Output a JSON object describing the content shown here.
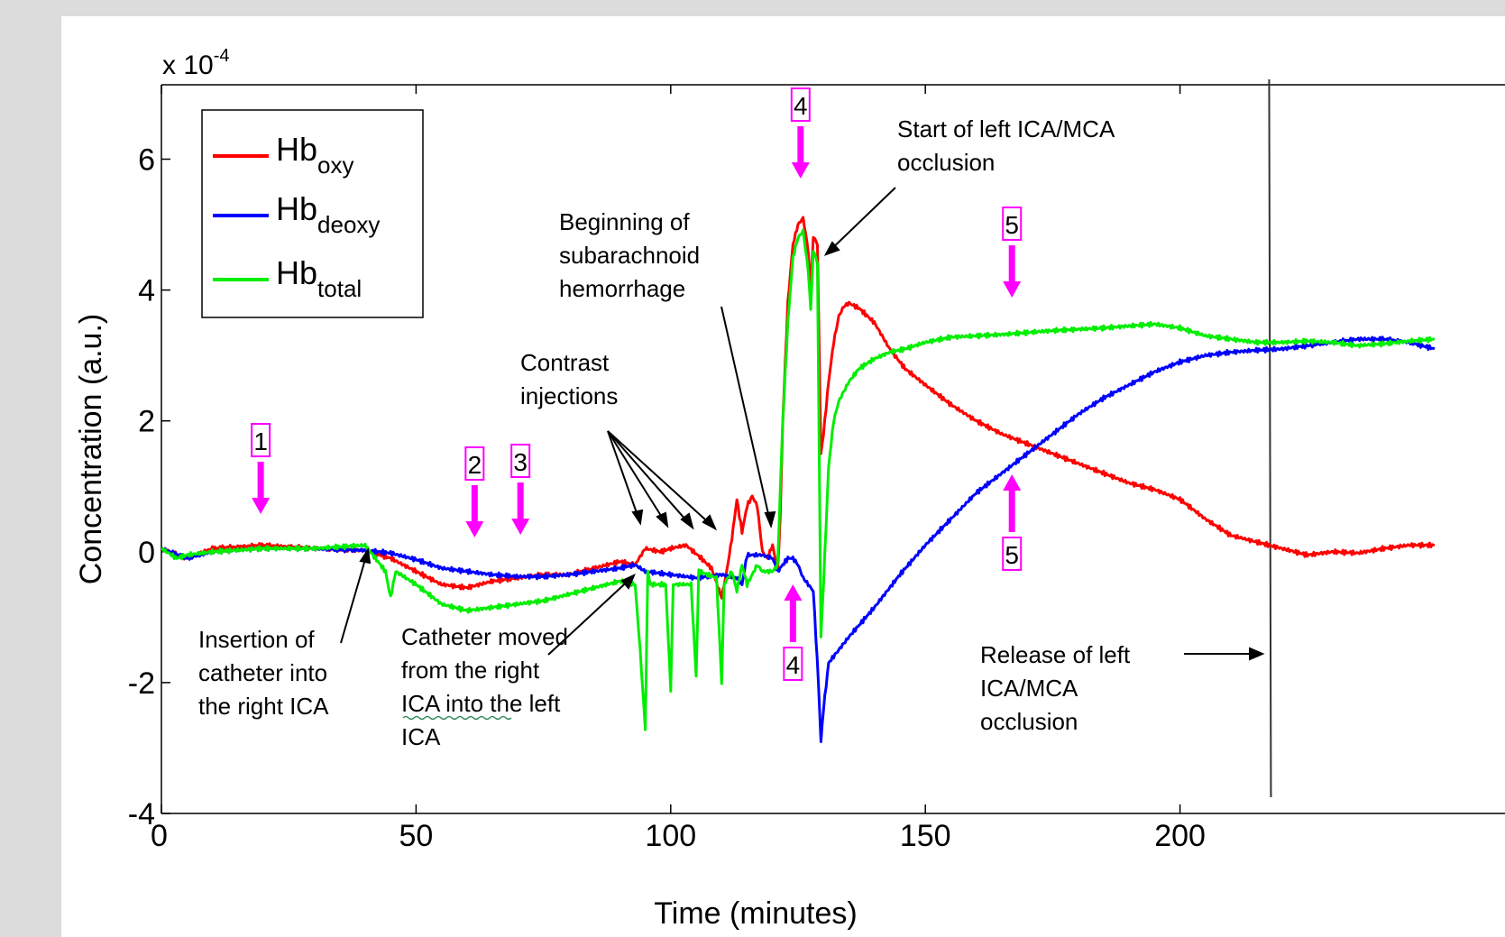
{
  "chart_data": {
    "type": "line",
    "exponent_label": "x 10",
    "exponent_power": "-4",
    "xlabel": "Time (minutes)",
    "ylabel": "Concentration (a.u.)",
    "xlim": [
      0,
      250
    ],
    "ylim": [
      -4,
      7
    ],
    "xticks": [
      0,
      50,
      100,
      150,
      200
    ],
    "xtick_labels": [
      "0",
      "50",
      "100",
      "150",
      "200"
    ],
    "yticks": [
      -4,
      -2,
      0,
      2,
      4,
      6
    ],
    "ytick_labels": [
      "-4",
      "-2",
      "0",
      "2",
      "4",
      "6"
    ],
    "grid": false,
    "legend_position": "top-left",
    "legend": [
      {
        "base": "Hb",
        "sub": "oxy",
        "color": "#ff0000"
      },
      {
        "base": "Hb",
        "sub": "deoxy",
        "color": "#0000ff"
      },
      {
        "base": "Hb",
        "sub": "total",
        "color": "#00ee00"
      }
    ],
    "series": [
      {
        "key": "oxy",
        "color": "#ff0000",
        "points": [
          [
            0,
            0.05
          ],
          [
            5,
            -0.1
          ],
          [
            10,
            0.05
          ],
          [
            20,
            0.1
          ],
          [
            30,
            0.05
          ],
          [
            40,
            0.02
          ],
          [
            45,
            -0.1
          ],
          [
            50,
            -0.3
          ],
          [
            55,
            -0.5
          ],
          [
            60,
            -0.55
          ],
          [
            65,
            -0.45
          ],
          [
            70,
            -0.4
          ],
          [
            75,
            -0.35
          ],
          [
            80,
            -0.35
          ],
          [
            85,
            -0.25
          ],
          [
            90,
            -0.15
          ],
          [
            93,
            -0.2
          ],
          [
            95,
            0.05
          ],
          [
            98,
            0.0
          ],
          [
            100,
            0.05
          ],
          [
            103,
            0.1
          ],
          [
            106,
            -0.1
          ],
          [
            108,
            -0.25
          ],
          [
            110,
            -0.7
          ],
          [
            111,
            -0.3
          ],
          [
            112,
            0.2
          ],
          [
            113,
            0.8
          ],
          [
            114,
            0.3
          ],
          [
            115,
            0.7
          ],
          [
            116,
            0.85
          ],
          [
            117,
            0.7
          ],
          [
            118,
            0.0
          ],
          [
            119,
            -0.1
          ],
          [
            120,
            0.1
          ],
          [
            121,
            -0.3
          ],
          [
            121.5,
            0.5
          ],
          [
            122,
            2.0
          ],
          [
            123,
            3.8
          ],
          [
            124,
            4.7
          ],
          [
            125,
            5.0
          ],
          [
            126,
            5.1
          ],
          [
            127,
            4.6
          ],
          [
            127.5,
            4.0
          ],
          [
            128,
            4.8
          ],
          [
            128.8,
            4.7
          ],
          [
            129.5,
            1.5
          ],
          [
            130,
            1.8
          ],
          [
            131,
            2.6
          ],
          [
            132,
            3.2
          ],
          [
            133,
            3.6
          ],
          [
            134,
            3.75
          ],
          [
            135,
            3.8
          ],
          [
            137,
            3.72
          ],
          [
            140,
            3.5
          ],
          [
            143,
            3.1
          ],
          [
            146,
            2.8
          ],
          [
            150,
            2.55
          ],
          [
            155,
            2.25
          ],
          [
            160,
            2.0
          ],
          [
            165,
            1.8
          ],
          [
            170,
            1.65
          ],
          [
            175,
            1.5
          ],
          [
            180,
            1.35
          ],
          [
            185,
            1.2
          ],
          [
            190,
            1.05
          ],
          [
            195,
            0.95
          ],
          [
            200,
            0.8
          ],
          [
            205,
            0.5
          ],
          [
            210,
            0.25
          ],
          [
            215,
            0.15
          ],
          [
            220,
            0.05
          ],
          [
            225,
            -0.05
          ],
          [
            230,
            0.0
          ],
          [
            235,
            -0.02
          ],
          [
            240,
            0.05
          ],
          [
            245,
            0.1
          ],
          [
            250,
            0.1
          ]
        ]
      },
      {
        "key": "deoxy",
        "color": "#0000ff",
        "points": [
          [
            0,
            0.05
          ],
          [
            5,
            -0.1
          ],
          [
            10,
            0.0
          ],
          [
            20,
            0.05
          ],
          [
            30,
            0.05
          ],
          [
            40,
            0.02
          ],
          [
            45,
            -0.02
          ],
          [
            50,
            -0.12
          ],
          [
            55,
            -0.25
          ],
          [
            60,
            -0.3
          ],
          [
            65,
            -0.35
          ],
          [
            70,
            -0.38
          ],
          [
            75,
            -0.38
          ],
          [
            80,
            -0.35
          ],
          [
            85,
            -0.3
          ],
          [
            90,
            -0.25
          ],
          [
            93,
            -0.2
          ],
          [
            95,
            -0.3
          ],
          [
            100,
            -0.35
          ],
          [
            105,
            -0.4
          ],
          [
            110,
            -0.35
          ],
          [
            113,
            -0.4
          ],
          [
            114,
            -0.5
          ],
          [
            115,
            -0.05
          ],
          [
            118,
            -0.05
          ],
          [
            120,
            -0.1
          ],
          [
            121,
            -0.3
          ],
          [
            122,
            -0.2
          ],
          [
            123,
            -0.1
          ],
          [
            124,
            -0.1
          ],
          [
            125,
            -0.2
          ],
          [
            126,
            -0.4
          ],
          [
            127,
            -0.5
          ],
          [
            128,
            -0.6
          ],
          [
            129,
            -2.0
          ],
          [
            129.5,
            -2.9
          ],
          [
            130,
            -2.4
          ],
          [
            131,
            -1.7
          ],
          [
            133,
            -1.5
          ],
          [
            135,
            -1.3
          ],
          [
            140,
            -0.85
          ],
          [
            145,
            -0.35
          ],
          [
            150,
            0.1
          ],
          [
            155,
            0.5
          ],
          [
            160,
            0.9
          ],
          [
            165,
            1.2
          ],
          [
            170,
            1.5
          ],
          [
            175,
            1.8
          ],
          [
            180,
            2.1
          ],
          [
            185,
            2.35
          ],
          [
            190,
            2.55
          ],
          [
            195,
            2.75
          ],
          [
            200,
            2.9
          ],
          [
            205,
            3.0
          ],
          [
            210,
            3.05
          ],
          [
            215,
            3.08
          ],
          [
            220,
            3.1
          ],
          [
            225,
            3.15
          ],
          [
            230,
            3.2
          ],
          [
            235,
            3.25
          ],
          [
            240,
            3.25
          ],
          [
            245,
            3.2
          ],
          [
            250,
            3.1
          ]
        ]
      },
      {
        "key": "total",
        "color": "#00ee00",
        "points": [
          [
            0,
            0.05
          ],
          [
            3,
            -0.1
          ],
          [
            5,
            -0.05
          ],
          [
            10,
            0.0
          ],
          [
            20,
            0.05
          ],
          [
            30,
            0.05
          ],
          [
            40,
            0.1
          ],
          [
            44,
            -0.3
          ],
          [
            45,
            -0.7
          ],
          [
            46,
            -0.3
          ],
          [
            50,
            -0.5
          ],
          [
            55,
            -0.8
          ],
          [
            60,
            -0.9
          ],
          [
            65,
            -0.85
          ],
          [
            70,
            -0.8
          ],
          [
            75,
            -0.75
          ],
          [
            80,
            -0.65
          ],
          [
            85,
            -0.55
          ],
          [
            90,
            -0.45
          ],
          [
            93,
            -0.5
          ],
          [
            94,
            -1.5
          ],
          [
            95,
            -2.7
          ],
          [
            95.5,
            -0.3
          ],
          [
            96,
            -0.5
          ],
          [
            99,
            -0.5
          ],
          [
            100,
            -2.1
          ],
          [
            100.5,
            -0.5
          ],
          [
            104,
            -0.5
          ],
          [
            105,
            -1.9
          ],
          [
            105.5,
            -0.3
          ],
          [
            109,
            -0.4
          ],
          [
            110,
            -2.0
          ],
          [
            110.5,
            -0.5
          ],
          [
            112,
            -0.3
          ],
          [
            113,
            -0.6
          ],
          [
            114,
            -0.2
          ],
          [
            115,
            -0.5
          ],
          [
            117,
            -0.2
          ],
          [
            118,
            -0.3
          ],
          [
            120,
            -0.3
          ],
          [
            121,
            -0.2
          ],
          [
            122,
            2.0
          ],
          [
            123,
            3.5
          ],
          [
            124,
            4.5
          ],
          [
            125,
            4.8
          ],
          [
            126,
            4.9
          ],
          [
            127,
            4.3
          ],
          [
            127.5,
            3.7
          ],
          [
            128,
            4.6
          ],
          [
            128.8,
            4.4
          ],
          [
            129.5,
            -1.3
          ],
          [
            130,
            -0.5
          ],
          [
            131,
            1.3
          ],
          [
            132,
            2.0
          ],
          [
            133,
            2.3
          ],
          [
            135,
            2.6
          ],
          [
            137,
            2.8
          ],
          [
            140,
            2.95
          ],
          [
            143,
            3.05
          ],
          [
            146,
            3.1
          ],
          [
            150,
            3.2
          ],
          [
            155,
            3.28
          ],
          [
            160,
            3.3
          ],
          [
            165,
            3.32
          ],
          [
            170,
            3.35
          ],
          [
            175,
            3.38
          ],
          [
            180,
            3.4
          ],
          [
            185,
            3.42
          ],
          [
            190,
            3.45
          ],
          [
            195,
            3.48
          ],
          [
            200,
            3.42
          ],
          [
            205,
            3.3
          ],
          [
            210,
            3.25
          ],
          [
            215,
            3.2
          ],
          [
            220,
            3.2
          ],
          [
            225,
            3.22
          ],
          [
            230,
            3.2
          ],
          [
            235,
            3.15
          ],
          [
            240,
            3.18
          ],
          [
            245,
            3.22
          ],
          [
            250,
            3.25
          ]
        ]
      }
    ],
    "markers": [
      {
        "label": "1",
        "x": 19.5,
        "direction": "down"
      },
      {
        "label": "2",
        "x": 61.5,
        "direction": "down"
      },
      {
        "label": "3",
        "x": 70.5,
        "direction": "down"
      },
      {
        "label": "4",
        "x": 125.5,
        "direction": "down"
      },
      {
        "label": "4",
        "x": 124,
        "direction": "up"
      },
      {
        "label": "5",
        "x": 167,
        "direction": "down"
      },
      {
        "label": "5",
        "x": 167,
        "direction": "up"
      }
    ],
    "vline_x": 217.5,
    "annotations": [
      {
        "lines": [
          "Insertion  of",
          "catheter into",
          "the right ICA"
        ]
      },
      {
        "lines": [
          "Catheter  moved",
          "from the right",
          "ICA  into  the left",
          "ICA"
        ]
      },
      {
        "lines": [
          "Contrast",
          "injections"
        ]
      },
      {
        "lines": [
          "Beginning  of",
          "subarachnoid",
          "hemorrhage"
        ]
      },
      {
        "lines": [
          "Start of left ICA/MCA",
          "occlusion"
        ]
      },
      {
        "lines": [
          "Release  of left",
          "ICA/MCA",
          "occlusion"
        ]
      }
    ]
  }
}
